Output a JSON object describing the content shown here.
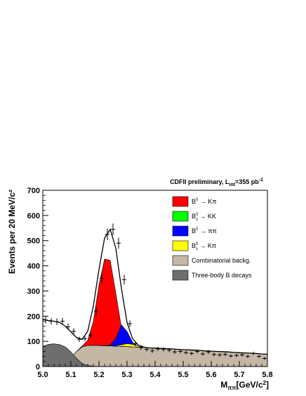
{
  "chart_data": {
    "type": "stacked-area",
    "title": "",
    "annotation": {
      "main": "CDFII preliminary, L",
      "sub": "int",
      "value": "=355 pb",
      "sup": "-1"
    },
    "xlabel": {
      "main": "M",
      "sub": "ππ",
      "rest": "[GeV/c",
      "sup": "2",
      "end": "]"
    },
    "ylabel": "Events per 20 MeV/c²",
    "xlim": [
      5.0,
      5.8
    ],
    "ylim": [
      0,
      700
    ],
    "x_ticks": [
      "5.0",
      "5.1",
      "5.2",
      "5.3",
      "5.4",
      "5.5",
      "5.6",
      "5.7",
      "5.8"
    ],
    "y_ticks": [
      "0",
      "100",
      "200",
      "300",
      "400",
      "500",
      "600",
      "700"
    ],
    "legend_position": "top-right",
    "legend": [
      {
        "color": "#ff0000",
        "base": "B",
        "sup": "0",
        "sub": "",
        "decay": "→ Kπ"
      },
      {
        "color": "#00ff00",
        "base": "B",
        "sup": "0",
        "sub": "s",
        "decay": "→ KK"
      },
      {
        "color": "#0000ff",
        "base": "B",
        "sup": "0",
        "sub": "",
        "decay": "→ ππ"
      },
      {
        "color": "#ffff00",
        "base": "B",
        "sup": "0",
        "sub": "s",
        "decay": "→ Kπ"
      },
      {
        "color": "#c4b7a6",
        "base": "Combinatorial backg.",
        "sup": "",
        "sub": "",
        "decay": ""
      },
      {
        "color": "#6e6e6e",
        "base": "Three-body B decays",
        "sup": "",
        "sub": "",
        "decay": ""
      }
    ],
    "data_points": {
      "x": [
        5.01,
        5.03,
        5.05,
        5.07,
        5.09,
        5.11,
        5.13,
        5.15,
        5.17,
        5.19,
        5.21,
        5.23,
        5.25,
        5.27,
        5.29,
        5.31,
        5.33,
        5.35,
        5.37,
        5.39,
        5.41,
        5.43,
        5.45,
        5.47,
        5.49,
        5.51,
        5.53,
        5.55,
        5.57,
        5.59,
        5.61,
        5.63,
        5.65,
        5.67,
        5.69,
        5.71,
        5.73,
        5.75,
        5.77,
        5.79
      ],
      "y": [
        185,
        180,
        178,
        180,
        158,
        140,
        108,
        110,
        125,
        220,
        350,
        525,
        545,
        490,
        345,
        170,
        90,
        75,
        68,
        62,
        70,
        68,
        65,
        58,
        60,
        55,
        52,
        60,
        50,
        58,
        48,
        46,
        48,
        42,
        44,
        46,
        40,
        52,
        40,
        32
      ],
      "yerr": [
        14,
        13,
        13,
        13,
        13,
        12,
        10,
        10,
        11,
        15,
        19,
        23,
        23,
        22,
        19,
        13,
        10,
        9,
        8,
        8,
        8,
        8,
        8,
        8,
        8,
        7,
        7,
        8,
        7,
        8,
        7,
        7,
        7,
        6,
        7,
        7,
        6,
        7,
        6,
        6
      ]
    },
    "components": {
      "x": [
        5.0,
        5.02,
        5.04,
        5.06,
        5.08,
        5.1,
        5.12,
        5.14,
        5.16,
        5.18,
        5.2,
        5.22,
        5.24,
        5.26,
        5.28,
        5.3,
        5.32,
        5.34,
        5.36,
        5.38,
        5.4,
        5.42,
        5.44,
        5.46,
        5.48,
        5.5,
        5.52,
        5.54,
        5.56,
        5.58,
        5.6,
        5.62,
        5.64,
        5.66,
        5.68,
        5.7,
        5.72,
        5.74,
        5.76,
        5.78,
        5.8
      ],
      "series": [
        {
          "name": "Three-body B decays",
          "color": "#6e6e6e",
          "values": [
            80,
            88,
            90,
            87,
            78,
            58,
            32,
            12,
            4,
            1,
            0,
            0,
            0,
            0,
            0,
            0,
            0,
            0,
            0,
            0,
            0,
            0,
            0,
            0,
            0,
            0,
            0,
            0,
            0,
            0,
            0,
            0,
            0,
            0,
            0,
            0,
            0,
            0,
            0,
            0,
            0
          ]
        },
        {
          "name": "Combinatorial backg.",
          "color": "#c4b7a6",
          "values": [
            17,
            11,
            8,
            10,
            18,
            36,
            60,
            78,
            84,
            84,
            83,
            82,
            82,
            81,
            80,
            79,
            78,
            77,
            76,
            74,
            73,
            72,
            71,
            70,
            68,
            67,
            66,
            65,
            64,
            62,
            61,
            60,
            59,
            58,
            56,
            55,
            54,
            53,
            52,
            50,
            49
          ]
        },
        {
          "name": "B0 → Kπ",
          "color": "#ff0000",
          "values": [
            0,
            0,
            0,
            0,
            0,
            0,
            0,
            3,
            20,
            95,
            240,
            345,
            340,
            210,
            75,
            13,
            1,
            0,
            0,
            0,
            0,
            0,
            0,
            0,
            0,
            0,
            0,
            0,
            0,
            0,
            0,
            0,
            0,
            0,
            0,
            0,
            0,
            0,
            0,
            0,
            0
          ]
        },
        {
          "name": "Bs0 → KK",
          "color": "#00ff00",
          "values": [
            0,
            0,
            0,
            0,
            0,
            0,
            0,
            0,
            0,
            0,
            0,
            0,
            2,
            18,
            52,
            40,
            10,
            1,
            0,
            0,
            0,
            0,
            0,
            0,
            0,
            0,
            0,
            0,
            0,
            0,
            0,
            0,
            0,
            0,
            0,
            0,
            0,
            0,
            0,
            0,
            0
          ]
        },
        {
          "name": "B0 → ππ",
          "color": "#0000ff",
          "values": [
            0,
            0,
            0,
            0,
            0,
            0,
            0,
            0,
            0,
            0,
            0,
            0,
            3,
            30,
            85,
            60,
            18,
            2,
            0,
            0,
            0,
            0,
            0,
            0,
            0,
            0,
            0,
            0,
            0,
            0,
            0,
            0,
            0,
            0,
            0,
            0,
            0,
            0,
            0,
            0,
            0
          ]
        },
        {
          "name": "Bs0 → Kπ",
          "color": "#ffff00",
          "values": [
            0,
            0,
            0,
            0,
            0,
            0,
            0,
            0,
            0,
            0,
            0,
            0,
            0,
            1,
            6,
            12,
            10,
            4,
            1,
            0,
            0,
            0,
            0,
            0,
            0,
            0,
            0,
            0,
            0,
            0,
            0,
            0,
            0,
            0,
            0,
            0,
            0,
            0,
            0,
            0,
            0
          ]
        }
      ]
    },
    "fit_curve": {
      "x": [
        5.0,
        5.02,
        5.04,
        5.06,
        5.08,
        5.1,
        5.12,
        5.14,
        5.16,
        5.18,
        5.2,
        5.22,
        5.24,
        5.26,
        5.28,
        5.3,
        5.32,
        5.34,
        5.36,
        5.38,
        5.4,
        5.42,
        5.44,
        5.46,
        5.48,
        5.5,
        5.52,
        5.54,
        5.56,
        5.58,
        5.6,
        5.62,
        5.64,
        5.66,
        5.68,
        5.7,
        5.72,
        5.74,
        5.76,
        5.78,
        5.8
      ],
      "y": [
        188,
        182,
        180,
        175,
        160,
        138,
        115,
        108,
        140,
        240,
        385,
        510,
        545,
        470,
        310,
        175,
        110,
        85,
        77,
        74,
        73,
        72,
        71,
        70,
        68,
        67,
        66,
        65,
        64,
        62,
        61,
        60,
        59,
        58,
        56,
        55,
        54,
        53,
        52,
        50,
        49
      ]
    }
  }
}
